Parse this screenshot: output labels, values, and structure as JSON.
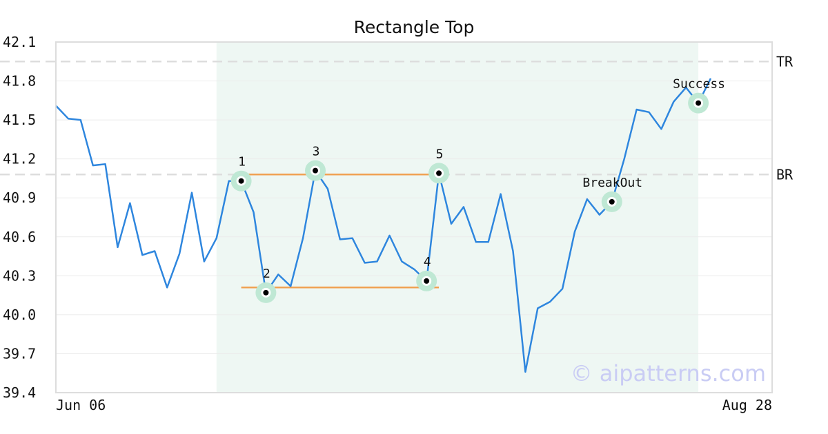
{
  "chart_data": {
    "type": "line",
    "title": "Rectangle Top",
    "xlabel": "",
    "ylabel": "",
    "ylim": [
      39.4,
      42.1
    ],
    "y_ticks": [
      "42.1",
      "41.8",
      "41.5",
      "41.2",
      "40.9",
      "40.6",
      "40.3",
      "40.0",
      "39.7",
      "39.4"
    ],
    "x_tick_labels": [
      "Jun 06",
      "Aug 28"
    ],
    "grid": "horizontal",
    "series": [
      {
        "color": "#2e86de",
        "values": [
          41.61,
          41.51,
          41.5,
          41.15,
          41.16,
          40.52,
          40.86,
          40.46,
          40.49,
          40.21,
          40.47,
          40.94,
          40.41,
          40.59,
          41.03,
          41.03,
          40.79,
          40.17,
          40.31,
          40.22,
          40.59,
          41.11,
          40.97,
          40.58,
          40.59,
          40.4,
          40.41,
          40.61,
          40.41,
          40.35,
          40.26,
          41.09,
          40.7,
          40.83,
          40.56,
          40.56,
          40.93,
          40.49,
          39.56,
          40.05,
          40.1,
          40.2,
          40.64,
          40.89,
          40.77,
          40.87,
          41.2,
          41.58,
          41.56,
          41.43,
          41.64,
          41.75,
          41.63,
          41.82
        ]
      }
    ],
    "pattern_zone": {
      "start_index": 13,
      "end_index": 52,
      "color": "#eef7f3"
    },
    "reference_lines": [
      {
        "label": "TR",
        "value": 41.95
      },
      {
        "label": "BR",
        "value": 41.08
      }
    ],
    "pattern_lines": [
      {
        "from_index": 15,
        "to_index": 31,
        "value": 41.08,
        "color": "#f0a050"
      },
      {
        "from_index": 15,
        "to_index": 31,
        "value": 40.21,
        "color": "#f0a050"
      }
    ],
    "points": [
      {
        "label": "1",
        "index": 15,
        "value": 41.03,
        "label_pos": "above"
      },
      {
        "label": "2",
        "index": 17,
        "value": 40.17,
        "label_pos": "above"
      },
      {
        "label": "3",
        "index": 21,
        "value": 41.11,
        "label_pos": "above"
      },
      {
        "label": "4",
        "index": 30,
        "value": 40.26,
        "label_pos": "above"
      },
      {
        "label": "5",
        "index": 31,
        "value": 41.09,
        "label_pos": "above"
      },
      {
        "label": "BreakOut",
        "index": 45,
        "value": 40.87,
        "label_pos": "above"
      },
      {
        "label": "Success",
        "index": 52,
        "value": 41.63,
        "label_pos": "above"
      }
    ],
    "marker_ring_color": "#bfe8d4",
    "watermark": "© aipatterns.com"
  }
}
